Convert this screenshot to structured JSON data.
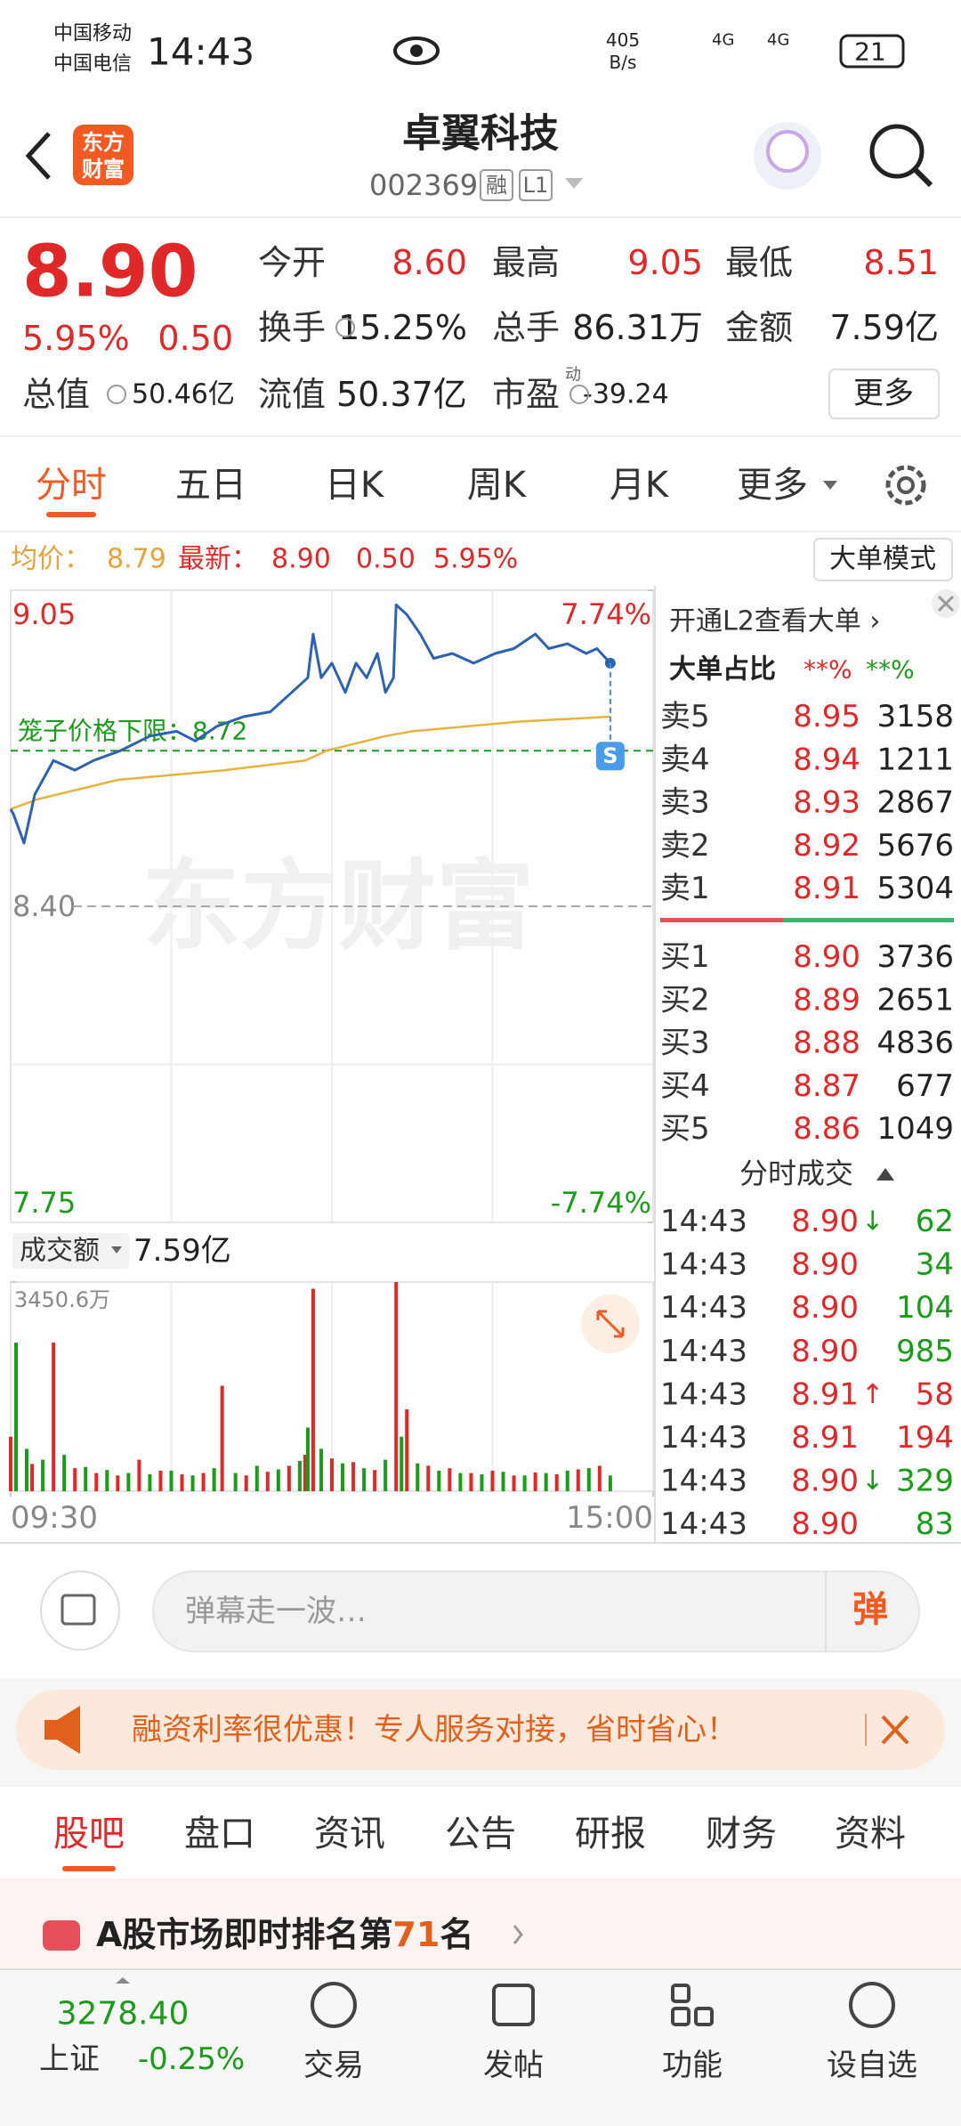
{
  "status_bar": {
    "carrier_1": "中国移动",
    "carrier_2": "中国电信",
    "time": "14:43",
    "net_speed": "405",
    "net_unit": "B/s",
    "signal_1": "4G",
    "signal_2": "4G",
    "battery": "21"
  },
  "header": {
    "logo": [
      "东方",
      "财富"
    ],
    "stock_name": "卓翼科技",
    "stock_code": "002369",
    "tags": [
      "融",
      "L1"
    ]
  },
  "quote": {
    "price": "8.90",
    "change_pct": "5.95%",
    "change": "0.50",
    "stats": [
      {
        "label": "今开",
        "value": "8.60"
      },
      {
        "label": "最高",
        "value": "9.05"
      },
      {
        "label": "最低",
        "value": "8.51"
      },
      {
        "label": "换手",
        "value": "15.25%"
      },
      {
        "label": "总手",
        "value": "86.31万"
      },
      {
        "label": "金额",
        "value": "7.59亿"
      },
      {
        "label": "总值",
        "value": "50.46亿"
      },
      {
        "label": "流值",
        "value": "50.37亿"
      },
      {
        "label": "市盈",
        "note": "动",
        "value": "-39.24"
      }
    ],
    "more_button": "更多"
  },
  "chart_tabs": [
    "分时",
    "五日",
    "日K",
    "周K",
    "月K",
    "更多"
  ],
  "info_line": {
    "avg_label": "均价：",
    "avg": "8.79",
    "latest_label": "最新：",
    "latest": "8.90",
    "change": "0.50",
    "change_pct": "5.95%",
    "mode_button": "大单模式"
  },
  "intraday_chart": {
    "type": "line",
    "xlim": [
      0,
      240
    ],
    "ylim": [
      7.75,
      9.05
    ],
    "yticks": [
      9.05,
      {
        "value": 8.4,
        "label": "8.40"
      },
      7.75
    ],
    "y2lim": [
      -7.74,
      7.74
    ],
    "y2ticks": [
      {
        "value": 7.74,
        "label": "7.74%"
      },
      {
        "value": -7.74,
        "label": "-7.74%"
      }
    ],
    "grid": true,
    "watermark": "东方财富",
    "signal": "S",
    "cage_limit": {
      "label": "笼子价格下限：8.72",
      "value": 8.72,
      "color": "#1a9b1a"
    },
    "series": [
      {
        "color": "#2d62b3",
        "x": [
          0,
          1,
          5,
          9,
          16,
          24,
          31,
          41,
          52,
          62,
          69,
          77,
          87,
          97,
          105,
          111,
          113,
          116,
          120,
          125,
          129,
          133,
          137,
          140,
          143,
          144,
          148,
          153,
          158,
          165,
          173,
          181,
          188,
          196,
          201,
          208,
          215,
          219,
          224
        ],
        "values": [
          8.6,
          8.59,
          8.53,
          8.63,
          8.7,
          8.68,
          8.7,
          8.72,
          8.75,
          8.76,
          8.74,
          8.77,
          8.79,
          8.8,
          8.84,
          8.87,
          8.96,
          8.87,
          8.9,
          8.84,
          8.9,
          8.87,
          8.92,
          8.84,
          8.87,
          9.02,
          9.0,
          8.96,
          8.91,
          8.92,
          8.9,
          8.92,
          8.93,
          8.96,
          8.93,
          8.94,
          8.92,
          8.93,
          8.9
        ]
      },
      {
        "color": "#e8b33c",
        "x": [
          0,
          10,
          40,
          80,
          110,
          118,
          140,
          150,
          190,
          224
        ],
        "values": [
          8.6,
          8.62,
          8.66,
          8.68,
          8.7,
          8.72,
          8.75,
          8.76,
          8.78,
          8.79
        ]
      }
    ]
  },
  "volume_chart": {
    "type": "bar",
    "header": "成交额",
    "total": "7.59亿",
    "xlim": [
      0,
      240
    ],
    "ylim": [
      0,
      3450.6
    ],
    "yticks": [
      {
        "value": 3450.6,
        "label": "3450.6万"
      }
    ],
    "xticks": [
      {
        "value": 0,
        "label": "09:30"
      },
      {
        "value": 240,
        "label": "15:00"
      }
    ],
    "series": [
      {
        "color": "#e02828",
        "x": [
          0,
          8,
          16,
          24,
          32,
          40,
          48,
          56,
          64,
          72,
          79,
          88,
          96,
          104,
          110,
          113,
          120,
          128,
          136,
          144,
          148,
          156,
          164,
          172,
          180,
          188,
          196,
          204,
          212,
          220
        ],
        "values": [
          900,
          450,
          2450,
          380,
          300,
          260,
          520,
          340,
          280,
          300,
          1740,
          260,
          320,
          420,
          600,
          3340,
          540,
          480,
          350,
          3450,
          1350,
          420,
          380,
          300,
          340,
          260,
          310,
          280,
          360,
          420
        ]
      },
      {
        "color": "#1a9b1a",
        "x": [
          2,
          6,
          12,
          20,
          28,
          36,
          44,
          52,
          60,
          68,
          76,
          84,
          92,
          100,
          108,
          111,
          116,
          124,
          132,
          140,
          146,
          152,
          160,
          168,
          176,
          184,
          192,
          200,
          208,
          216,
          224
        ],
        "values": [
          2450,
          700,
          520,
          600,
          400,
          350,
          300,
          280,
          340,
          260,
          380,
          300,
          420,
          360,
          500,
          1050,
          700,
          460,
          380,
          520,
          900,
          460,
          340,
          300,
          280,
          320,
          260,
          300,
          340,
          380,
          260
        ]
      }
    ]
  },
  "level2": {
    "promo": "开通L2查看大单 ›",
    "big_order_label": "大单占比",
    "big_buy": "**%",
    "big_sell": "**%"
  },
  "order_book": {
    "asks": [
      [
        "卖5",
        "8.95",
        "3158"
      ],
      [
        "卖4",
        "8.94",
        "1211"
      ],
      [
        "卖3",
        "8.93",
        "2867"
      ],
      [
        "卖2",
        "8.92",
        "5676"
      ],
      [
        "卖1",
        "8.91",
        "5304"
      ]
    ],
    "bids": [
      [
        "买1",
        "8.90",
        "3736"
      ],
      [
        "买2",
        "8.89",
        "2651"
      ],
      [
        "买3",
        "8.88",
        "4836"
      ],
      [
        "买4",
        "8.87",
        "677"
      ],
      [
        "买5",
        "8.86",
        "1049"
      ]
    ]
  },
  "trades": {
    "title": "分时成交",
    "rows": [
      {
        "time": "14:43",
        "price": "8.90",
        "arrow": "↓",
        "volume": "62",
        "color": "#1a9b1a"
      },
      {
        "time": "14:43",
        "price": "8.90",
        "volume": "34",
        "color": "#1a9b1a"
      },
      {
        "time": "14:43",
        "price": "8.90",
        "volume": "104",
        "color": "#1a9b1a"
      },
      {
        "time": "14:43",
        "price": "8.90",
        "volume": "985",
        "color": "#1a9b1a"
      },
      {
        "time": "14:43",
        "price": "8.91",
        "arrow": "↑",
        "volume": "58",
        "color": "#e02828"
      },
      {
        "time": "14:43",
        "price": "8.91",
        "volume": "194",
        "color": "#e02828"
      },
      {
        "time": "14:43",
        "price": "8.90",
        "arrow": "↓",
        "volume": "329",
        "color": "#1a9b1a"
      },
      {
        "time": "14:43",
        "price": "8.90",
        "volume": "83",
        "color": "#1a9b1a"
      }
    ]
  },
  "danmu": {
    "placeholder": "弹幕走一波…",
    "button": "弹"
  },
  "banner": {
    "text": "融资利率很优惠！专人服务对接，省时省心！"
  },
  "bottom_tabs": [
    "股吧",
    "盘口",
    "资讯",
    "公告",
    "研报",
    "财务",
    "资料"
  ],
  "ranking": {
    "prefix": "A股市场即时排名第",
    "rank": "71",
    "suffix": "名"
  },
  "bottom_nav": {
    "index_value": "3278.40",
    "index_name": "上证",
    "index_change": "-0.25%",
    "items": [
      "交易",
      "发帖",
      "功能",
      "设自选"
    ]
  }
}
